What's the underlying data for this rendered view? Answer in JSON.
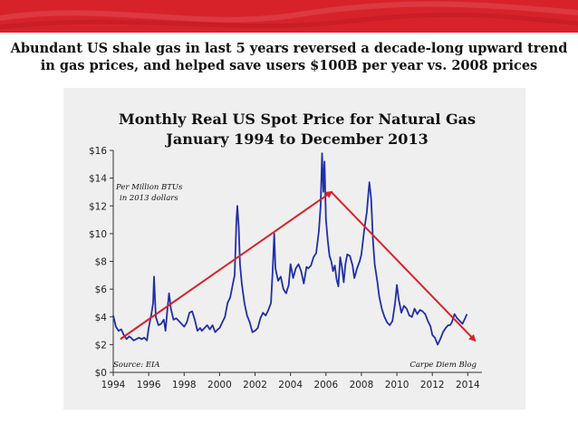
{
  "headline": {
    "line1": "Abundant US shale gas in last 5 years reversed a decade-long upward trend",
    "line2": "in gas prices, and helped save users $100B per year vs. 2008 prices"
  },
  "colors": {
    "banner": "#d8222a",
    "series": "#1f2fa8",
    "trend": "#d8222a"
  },
  "chart_data": {
    "type": "line",
    "title": "Monthly Real US Spot Price for Natural Gas",
    "subtitle": "January 1994 to December 2013",
    "xlim": [
      1994,
      2014.8
    ],
    "ylim": [
      0,
      16
    ],
    "x_ticks": [
      1994,
      1996,
      1998,
      2000,
      2002,
      2004,
      2006,
      2008,
      2010,
      2012,
      2014
    ],
    "y_ticks": [
      0,
      2,
      4,
      6,
      8,
      10,
      12,
      14,
      16
    ],
    "y_tick_labels": [
      "$0",
      "$2",
      "$4",
      "$6",
      "$8",
      "$10",
      "$12",
      "$14",
      "$16"
    ],
    "grid": false,
    "annotations": {
      "units": [
        "Per Million BTUs",
        "in 2013 dollars"
      ],
      "source": "Source: EIA",
      "credit": "Carpe Diem Blog"
    },
    "series": [
      {
        "values": [
          [
            1994.0,
            4.1
          ],
          [
            1994.15,
            3.3
          ],
          [
            1994.3,
            3.0
          ],
          [
            1994.45,
            3.1
          ],
          [
            1994.6,
            2.7
          ],
          [
            1994.75,
            2.4
          ],
          [
            1994.9,
            2.6
          ],
          [
            1995.0,
            2.5
          ],
          [
            1995.15,
            2.3
          ],
          [
            1995.3,
            2.4
          ],
          [
            1995.45,
            2.5
          ],
          [
            1995.6,
            2.4
          ],
          [
            1995.75,
            2.5
          ],
          [
            1995.9,
            2.3
          ],
          [
            1996.0,
            3.2
          ],
          [
            1996.15,
            4.2
          ],
          [
            1996.25,
            5.0
          ],
          [
            1996.3,
            6.9
          ],
          [
            1996.4,
            4.0
          ],
          [
            1996.55,
            3.4
          ],
          [
            1996.7,
            3.5
          ],
          [
            1996.85,
            3.8
          ],
          [
            1996.95,
            3.0
          ],
          [
            1997.05,
            4.5
          ],
          [
            1997.15,
            5.7
          ],
          [
            1997.25,
            4.6
          ],
          [
            1997.4,
            3.8
          ],
          [
            1997.55,
            3.9
          ],
          [
            1997.7,
            3.7
          ],
          [
            1997.85,
            3.5
          ],
          [
            1998.0,
            3.3
          ],
          [
            1998.15,
            3.6
          ],
          [
            1998.3,
            4.3
          ],
          [
            1998.45,
            4.4
          ],
          [
            1998.6,
            3.8
          ],
          [
            1998.75,
            3.0
          ],
          [
            1998.9,
            3.2
          ],
          [
            1999.0,
            3.0
          ],
          [
            1999.15,
            3.2
          ],
          [
            1999.3,
            3.4
          ],
          [
            1999.45,
            3.1
          ],
          [
            1999.6,
            3.4
          ],
          [
            1999.75,
            2.9
          ],
          [
            1999.9,
            3.1
          ],
          [
            2000.0,
            3.2
          ],
          [
            2000.15,
            3.6
          ],
          [
            2000.3,
            4.0
          ],
          [
            2000.45,
            5.0
          ],
          [
            2000.6,
            5.4
          ],
          [
            2000.75,
            6.4
          ],
          [
            2000.85,
            7.0
          ],
          [
            2000.95,
            11.0
          ],
          [
            2001.0,
            12.0
          ],
          [
            2001.08,
            10.5
          ],
          [
            2001.15,
            7.8
          ],
          [
            2001.25,
            6.4
          ],
          [
            2001.4,
            5.0
          ],
          [
            2001.55,
            4.1
          ],
          [
            2001.7,
            3.6
          ],
          [
            2001.85,
            2.9
          ],
          [
            2002.0,
            3.0
          ],
          [
            2002.15,
            3.2
          ],
          [
            2002.3,
            3.9
          ],
          [
            2002.45,
            4.3
          ],
          [
            2002.6,
            4.1
          ],
          [
            2002.75,
            4.5
          ],
          [
            2002.9,
            5.0
          ],
          [
            2003.0,
            7.5
          ],
          [
            2003.08,
            10.0
          ],
          [
            2003.15,
            7.5
          ],
          [
            2003.3,
            6.6
          ],
          [
            2003.45,
            6.9
          ],
          [
            2003.6,
            6.0
          ],
          [
            2003.75,
            5.7
          ],
          [
            2003.9,
            6.3
          ],
          [
            2004.0,
            7.8
          ],
          [
            2004.15,
            6.8
          ],
          [
            2004.3,
            7.5
          ],
          [
            2004.45,
            7.8
          ],
          [
            2004.6,
            7.3
          ],
          [
            2004.75,
            6.4
          ],
          [
            2004.9,
            7.6
          ],
          [
            2005.0,
            7.5
          ],
          [
            2005.15,
            7.7
          ],
          [
            2005.3,
            8.3
          ],
          [
            2005.45,
            8.6
          ],
          [
            2005.6,
            10.2
          ],
          [
            2005.7,
            12.0
          ],
          [
            2005.78,
            15.8
          ],
          [
            2005.85,
            13.0
          ],
          [
            2005.92,
            15.2
          ],
          [
            2006.0,
            11.0
          ],
          [
            2006.1,
            9.5
          ],
          [
            2006.2,
            8.4
          ],
          [
            2006.3,
            8.0
          ],
          [
            2006.4,
            7.3
          ],
          [
            2006.5,
            7.7
          ],
          [
            2006.6,
            6.7
          ],
          [
            2006.7,
            6.2
          ],
          [
            2006.8,
            8.3
          ],
          [
            2006.9,
            7.6
          ],
          [
            2007.0,
            6.5
          ],
          [
            2007.1,
            7.8
          ],
          [
            2007.2,
            8.5
          ],
          [
            2007.35,
            8.4
          ],
          [
            2007.5,
            7.7
          ],
          [
            2007.6,
            6.8
          ],
          [
            2007.75,
            7.5
          ],
          [
            2007.9,
            8.0
          ],
          [
            2008.0,
            8.5
          ],
          [
            2008.15,
            10.2
          ],
          [
            2008.3,
            11.5
          ],
          [
            2008.45,
            13.7
          ],
          [
            2008.55,
            12.5
          ],
          [
            2008.65,
            9.5
          ],
          [
            2008.75,
            7.8
          ],
          [
            2008.9,
            6.5
          ],
          [
            2009.0,
            5.5
          ],
          [
            2009.15,
            4.6
          ],
          [
            2009.3,
            4.0
          ],
          [
            2009.45,
            3.6
          ],
          [
            2009.6,
            3.4
          ],
          [
            2009.75,
            3.7
          ],
          [
            2009.9,
            5.0
          ],
          [
            2010.0,
            6.3
          ],
          [
            2010.1,
            5.3
          ],
          [
            2010.25,
            4.3
          ],
          [
            2010.4,
            4.8
          ],
          [
            2010.55,
            4.6
          ],
          [
            2010.7,
            4.1
          ],
          [
            2010.85,
            4.0
          ],
          [
            2011.0,
            4.6
          ],
          [
            2011.15,
            4.2
          ],
          [
            2011.3,
            4.5
          ],
          [
            2011.45,
            4.4
          ],
          [
            2011.6,
            4.2
          ],
          [
            2011.75,
            3.7
          ],
          [
            2011.9,
            3.3
          ],
          [
            2012.0,
            2.7
          ],
          [
            2012.15,
            2.5
          ],
          [
            2012.3,
            2.0
          ],
          [
            2012.45,
            2.4
          ],
          [
            2012.6,
            2.9
          ],
          [
            2012.75,
            3.2
          ],
          [
            2012.9,
            3.4
          ],
          [
            2013.0,
            3.4
          ],
          [
            2013.1,
            3.6
          ],
          [
            2013.25,
            4.2
          ],
          [
            2013.4,
            3.9
          ],
          [
            2013.55,
            3.7
          ],
          [
            2013.7,
            3.5
          ],
          [
            2013.85,
            3.9
          ],
          [
            2013.95,
            4.2
          ]
        ]
      }
    ],
    "trend_lines": [
      {
        "from": [
          1994.4,
          2.4
        ],
        "to": [
          2006.3,
          13.0
        ]
      },
      {
        "from": [
          2006.3,
          13.0
        ],
        "to": [
          2014.4,
          2.3
        ]
      }
    ]
  }
}
